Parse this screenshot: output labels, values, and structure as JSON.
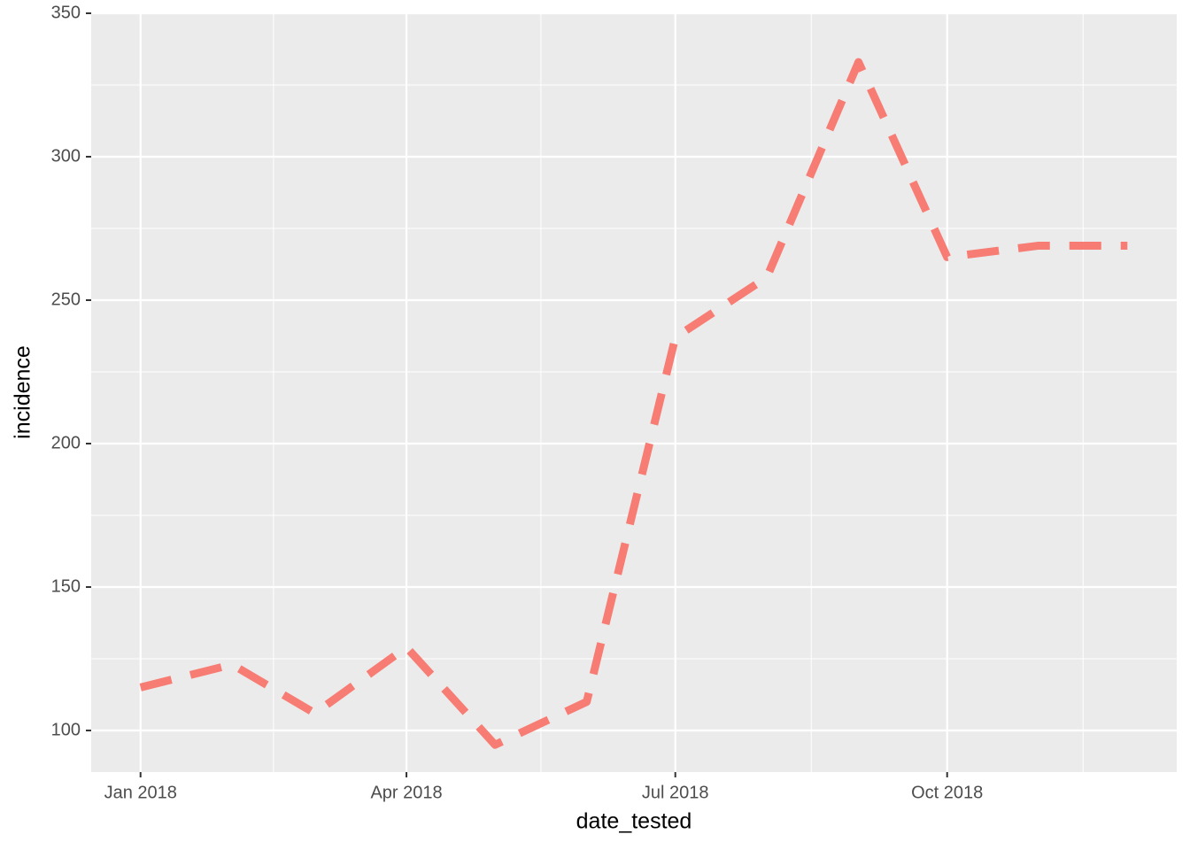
{
  "chart_data": {
    "type": "line",
    "x_label": "date_tested",
    "y_label": "incidence",
    "x": [
      "2018-01",
      "2018-02",
      "2018-03",
      "2018-04",
      "2018-05",
      "2018-06",
      "2018-07",
      "2018-08",
      "2018-09",
      "2018-10",
      "2018-11",
      "2018-12"
    ],
    "series": [
      {
        "color": "#F8766D",
        "values": [
          115,
          123,
          106,
          129,
          95,
          110,
          237,
          258,
          333,
          265,
          269,
          269
        ]
      }
    ],
    "line_style": "dashed",
    "ylim": [
      85.5,
      350
    ],
    "yticks": [
      100,
      150,
      200,
      250,
      300,
      350
    ],
    "xticks": [
      {
        "value": "2018-01",
        "label": "Jan 2018"
      },
      {
        "value": "2018-04",
        "label": "Apr 2018"
      },
      {
        "value": "2018-07",
        "label": "Jul 2018"
      },
      {
        "value": "2018-10",
        "label": "Oct 2018"
      }
    ],
    "grid": true
  }
}
